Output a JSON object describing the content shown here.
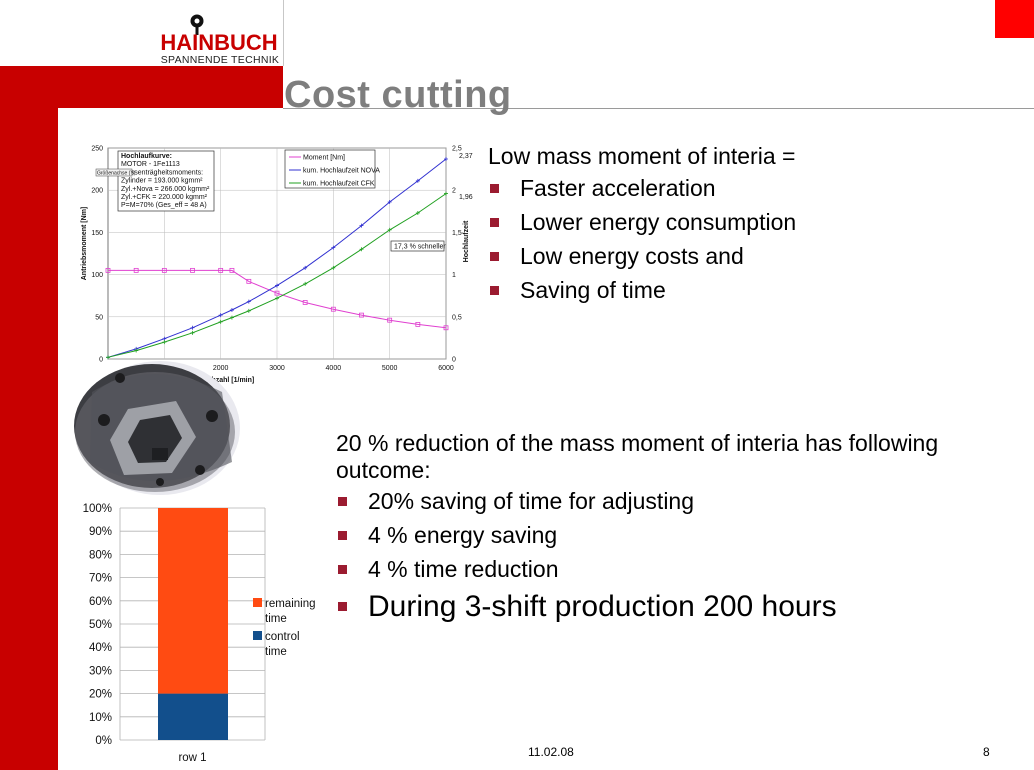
{
  "header": {
    "logo": {
      "name": "HAINBUCH",
      "subtitle": "SPANNENDE TECHNIK"
    },
    "title": "Cost cutting"
  },
  "section1": {
    "lead": "Low mass moment of interia =",
    "bullets": [
      "Faster acceleration",
      "Lower energy consumption",
      "Low energy costs and",
      "Saving of time"
    ]
  },
  "section2": {
    "lead": "20 % reduction of the mass moment of interia has following outcome:",
    "bullets": [
      "20% saving of time for adjusting",
      "4 % energy saving",
      "4 % time reduction"
    ],
    "big_bullet": "During 3-shift production 200 hours"
  },
  "footer": {
    "date": "11.02.08",
    "page": "8"
  },
  "colors": {
    "brand_red": "#c80000",
    "accent_red": "#ff0000",
    "bullet": "#9b1b30",
    "title_gray": "#7e7e7e"
  },
  "chart_data": [
    {
      "type": "line",
      "x": [
        0,
        500,
        1000,
        1500,
        2000,
        2200,
        2500,
        3000,
        3500,
        4000,
        4500,
        5000,
        5500,
        6000
      ],
      "xlabel": "Drehzahl [1/min]",
      "ylabel": "Antriebsmoment [Nm]",
      "y2label": "Hochlaufzeit",
      "xlim": [
        0,
        6000
      ],
      "ylim": [
        0,
        250
      ],
      "y2lim": [
        0,
        2.5
      ],
      "xticks": [
        "2000",
        "3000",
        "4000",
        "5000",
        "6000"
      ],
      "yticks": [
        "0",
        "50",
        "100",
        "150",
        "200",
        "250"
      ],
      "y2ticks": [
        "0",
        "0,5",
        "1",
        "1,5",
        "2",
        "2,5"
      ],
      "grid": true,
      "series": [
        {
          "name": "Moment [Nm]",
          "axis": "left",
          "color": "#e040d0",
          "marker": "square",
          "values": [
            105,
            105,
            105,
            105,
            105,
            105,
            92,
            78,
            67,
            59,
            52,
            46,
            41,
            37
          ]
        },
        {
          "name": "kum. Hochlaufzeit NOVA",
          "axis": "right",
          "color": "#3030d0",
          "marker": "cross",
          "values": [
            0.02,
            0.12,
            0.24,
            0.37,
            0.52,
            0.58,
            0.68,
            0.87,
            1.08,
            1.32,
            1.58,
            1.86,
            2.11,
            2.37
          ]
        },
        {
          "name": "kum. Hochlaufzeit CFK",
          "axis": "right",
          "color": "#20a020",
          "marker": "cross",
          "values": [
            0.02,
            0.1,
            0.2,
            0.31,
            0.44,
            0.49,
            0.57,
            0.72,
            0.89,
            1.08,
            1.3,
            1.53,
            1.73,
            1.96
          ]
        }
      ],
      "annotations": {
        "endvalues": [
          "2,37",
          "1,96"
        ],
        "infobox": [
          "Hochlaufkurve:",
          "MOTOR - 1Fe1113",
          "Massenträgheitsmoments:",
          "Zylinder   = 193.000 kgmm²",
          "Zyl.+Nova = 266.000 kgmm²",
          "Zyl.+CFK  = 220.000 kgmm²",
          "P=M=70% (Ges_eff = 48 A)"
        ],
        "small_tag": "Größenachse (Y)",
        "callout": "17,3 % schneller"
      }
    },
    {
      "type": "bar",
      "stacked": true,
      "categories": [
        "row 1"
      ],
      "series": [
        {
          "name": "control time",
          "color": "#124f8c",
          "values": [
            20
          ]
        },
        {
          "name": "remaining time",
          "color": "#ff4b12",
          "values": [
            80
          ]
        }
      ],
      "ylim": [
        0,
        100
      ],
      "yticks": [
        "0%",
        "10%",
        "20%",
        "30%",
        "40%",
        "50%",
        "60%",
        "70%",
        "80%",
        "90%",
        "100%"
      ],
      "legend": "right",
      "grid": true
    }
  ]
}
